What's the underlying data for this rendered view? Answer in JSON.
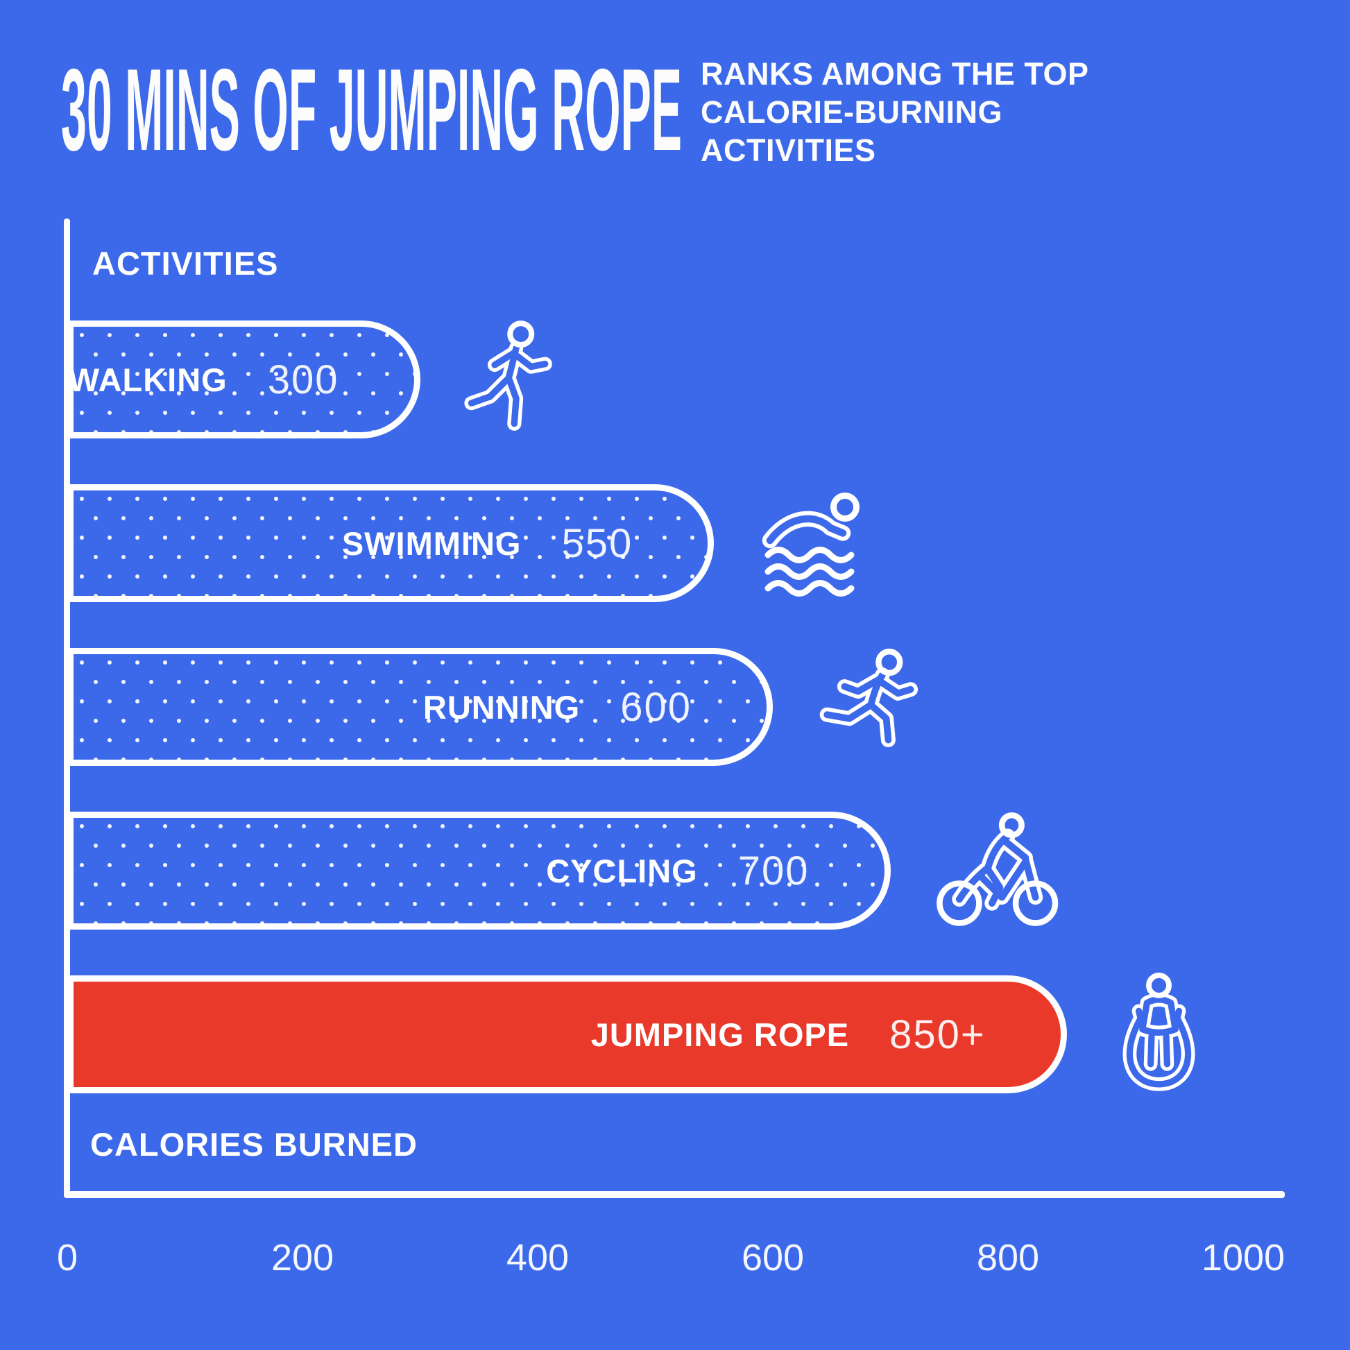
{
  "page": {
    "background_color": "#3C69EA",
    "accent_color": "#E8392B",
    "text_color": "#FFFFFF"
  },
  "header": {
    "title": "30 MINS OF JUMPING ROPE",
    "subtitle_lines": [
      "RANKS AMONG THE TOP",
      "CALORIE-BURNING",
      "ACTIVITIES"
    ]
  },
  "chart_data": {
    "type": "bar",
    "orientation": "horizontal",
    "title": "30 MINS OF JUMPING ROPE ranks among the top calorie-burning activities",
    "ylabel": "ACTIVITIES",
    "xlabel": "CALORIES BURNED",
    "categories": [
      "WALKING",
      "SWIMMING",
      "RUNNING",
      "CYCLING",
      "JUMPING ROPE"
    ],
    "values": [
      300,
      550,
      600,
      700,
      850
    ],
    "value_labels": [
      "300",
      "550",
      "600",
      "700",
      "850+"
    ],
    "icons": [
      "walking-person-icon",
      "swimmer-icon",
      "runner-icon",
      "cyclist-icon",
      "jump-rope-person-icon"
    ],
    "highlight_index": 4,
    "highlight_color": "#E8392B",
    "bar_style": "dotted outline pill on blue, highlighted bar solid red",
    "x_ticks": [
      0,
      200,
      400,
      600,
      800,
      1000
    ],
    "xlim": [
      0,
      1000
    ],
    "grid": false,
    "legend": "none"
  }
}
